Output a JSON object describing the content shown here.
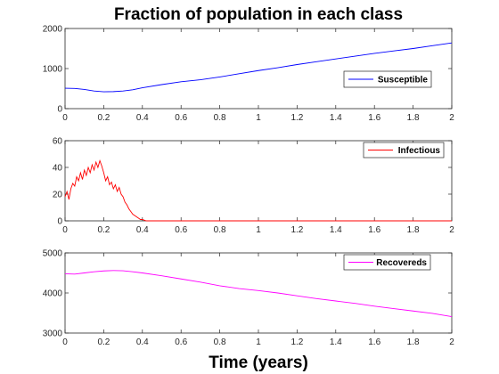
{
  "chart_data": {
    "type": "line",
    "title": "Fraction of population in each class",
    "xlabel": "Time (years)",
    "x_ticks": [
      "0",
      "0.2",
      "0.4",
      "0.6",
      "0.8",
      "1",
      "1.2",
      "1.4",
      "1.6",
      "1.8",
      "2"
    ],
    "xlim": [
      0,
      2
    ],
    "panels": [
      {
        "series_name": "Susceptible",
        "color": "#0000ff",
        "legend_position": "right",
        "ylim": [
          0,
          2000
        ],
        "y_ticks": [
          "0",
          "1000",
          "2000"
        ],
        "x": [
          0,
          0.05,
          0.1,
          0.15,
          0.2,
          0.25,
          0.3,
          0.35,
          0.4,
          0.5,
          0.6,
          0.7,
          0.8,
          0.9,
          1.0,
          1.1,
          1.2,
          1.3,
          1.4,
          1.5,
          1.6,
          1.7,
          1.8,
          1.9,
          2.0
        ],
        "values": [
          510,
          505,
          480,
          440,
          420,
          425,
          440,
          470,
          520,
          600,
          670,
          720,
          790,
          870,
          950,
          1020,
          1100,
          1170,
          1240,
          1310,
          1380,
          1440,
          1500,
          1570,
          1640
        ]
      },
      {
        "series_name": "Infectious",
        "color": "#ff0000",
        "legend_position": "top-right",
        "ylim": [
          0,
          60
        ],
        "y_ticks": [
          "0",
          "20",
          "40",
          "60"
        ],
        "x": [
          0,
          0.01,
          0.02,
          0.03,
          0.04,
          0.05,
          0.06,
          0.07,
          0.08,
          0.09,
          0.1,
          0.11,
          0.12,
          0.13,
          0.14,
          0.15,
          0.16,
          0.17,
          0.18,
          0.19,
          0.2,
          0.21,
          0.22,
          0.23,
          0.24,
          0.25,
          0.26,
          0.27,
          0.28,
          0.29,
          0.3,
          0.31,
          0.32,
          0.33,
          0.34,
          0.35,
          0.36,
          0.37,
          0.38,
          0.39,
          0.4,
          0.42,
          0.45,
          0.5,
          0.6,
          0.8,
          1.0,
          1.2,
          1.4,
          1.6,
          1.8,
          2.0
        ],
        "values": [
          18,
          22,
          16,
          24,
          28,
          26,
          33,
          30,
          36,
          31,
          38,
          34,
          40,
          36,
          42,
          38,
          44,
          40,
          45,
          41,
          36,
          30,
          33,
          27,
          29,
          24,
          27,
          22,
          25,
          20,
          18,
          14,
          12,
          9,
          7,
          5,
          4,
          3,
          2,
          1,
          1,
          0,
          0,
          0,
          0,
          0,
          0,
          0,
          0,
          0,
          0,
          0
        ]
      },
      {
        "series_name": "Recovereds",
        "color": "#ff00ff",
        "legend_position": "top-right",
        "ylim": [
          3000,
          5000
        ],
        "y_ticks": [
          "3000",
          "4000",
          "5000"
        ],
        "x": [
          0,
          0.05,
          0.1,
          0.15,
          0.2,
          0.25,
          0.3,
          0.35,
          0.4,
          0.5,
          0.6,
          0.7,
          0.8,
          0.9,
          1.0,
          1.1,
          1.2,
          1.3,
          1.4,
          1.5,
          1.6,
          1.7,
          1.8,
          1.9,
          2.0
        ],
        "values": [
          4480,
          4470,
          4500,
          4530,
          4550,
          4560,
          4555,
          4530,
          4500,
          4430,
          4350,
          4270,
          4180,
          4110,
          4060,
          4000,
          3930,
          3860,
          3800,
          3740,
          3670,
          3610,
          3550,
          3490,
          3410
        ]
      }
    ]
  }
}
